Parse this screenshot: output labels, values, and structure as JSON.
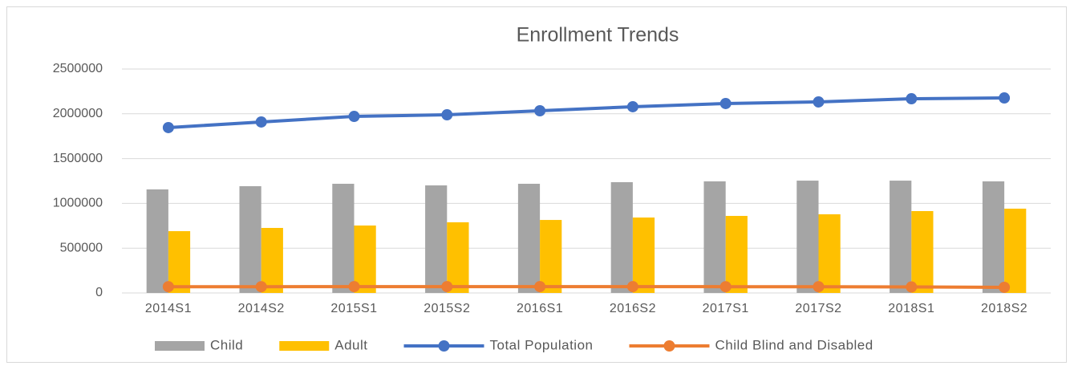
{
  "chart_data": {
    "type": "combo",
    "title": "Enrollment Trends",
    "categories": [
      "2014S1",
      "2014S2",
      "2015S1",
      "2015S2",
      "2016S1",
      "2016S2",
      "2017S1",
      "2017S2",
      "2018S1",
      "2018S2"
    ],
    "series": [
      {
        "name": "Child",
        "type": "bar",
        "color": "#a5a5a5",
        "values": [
          1156000,
          1192000,
          1219000,
          1201000,
          1219000,
          1237000,
          1246000,
          1254000,
          1254000,
          1246000
        ]
      },
      {
        "name": "Adult",
        "type": "bar",
        "color": "#ffc000",
        "values": [
          690000,
          726000,
          753000,
          789000,
          815000,
          842000,
          860000,
          878000,
          914000,
          941000
        ]
      },
      {
        "name": "Total Population",
        "type": "line",
        "color": "#4472c4",
        "values": [
          1846000,
          1909000,
          1971000,
          1989000,
          2034000,
          2079000,
          2115000,
          2133000,
          2168000,
          2177000
        ]
      },
      {
        "name": "Child Blind and Disabled",
        "type": "line",
        "color": "#ed7d31",
        "values": [
          70000,
          70000,
          71000,
          71000,
          71000,
          71000,
          70000,
          70000,
          67000,
          63000
        ]
      }
    ],
    "ylim": [
      0,
      2500000
    ],
    "yticks": [
      0,
      500000,
      1000000,
      1500000,
      2000000,
      2500000
    ],
    "grid": true,
    "legend": "bottom"
  }
}
